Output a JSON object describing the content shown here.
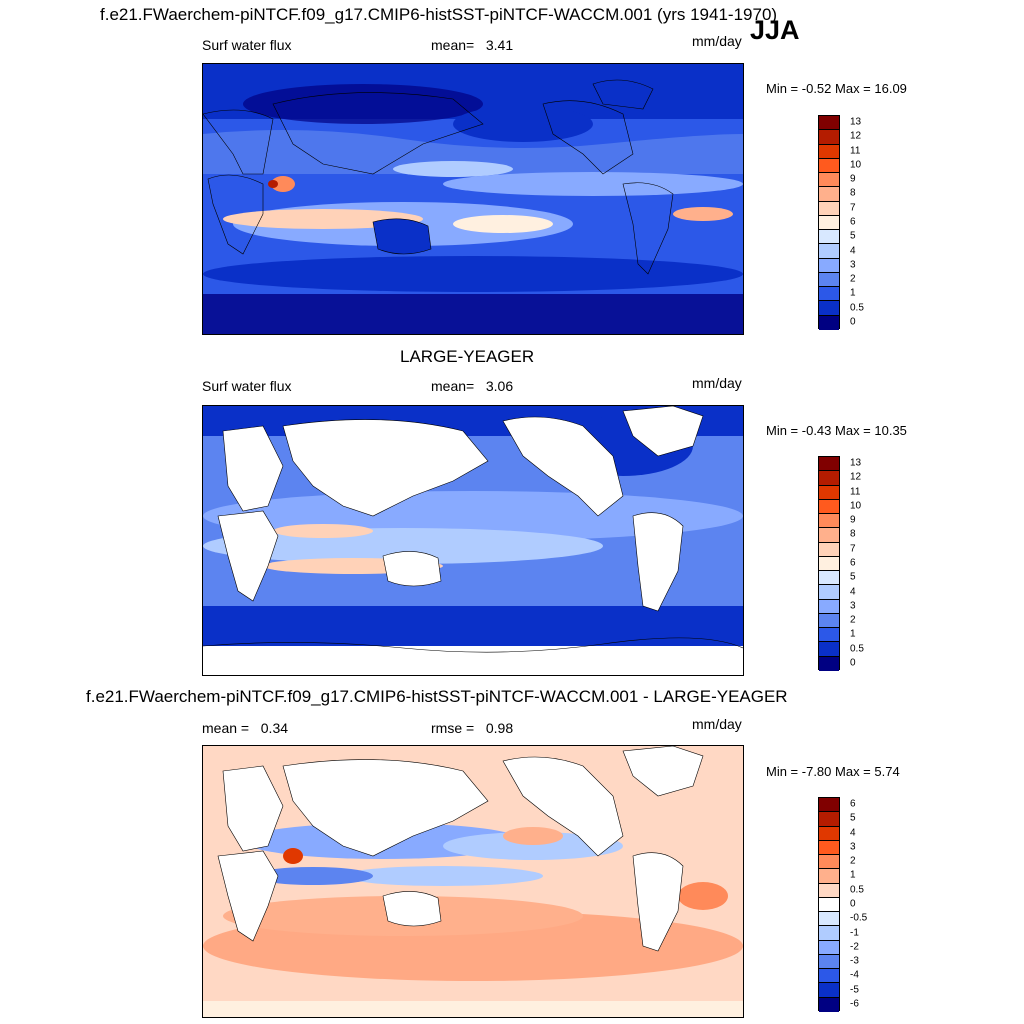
{
  "header": {
    "title": "f.e21.FWaerchem-piNTCF.f09_g17.CMIP6-histSST-piNTCF-WACCM.001 (yrs 1941-1970)",
    "season": "JJA"
  },
  "panel1": {
    "variable": "Surf water flux",
    "mean_label": "mean=",
    "mean_value": "3.41",
    "units": "mm/day",
    "min_max": "Min =  -0.52 Max =  16.09",
    "colorbar_ticks": [
      "13",
      "12",
      "11",
      "10",
      "9",
      "8",
      "7",
      "6",
      "5",
      "4",
      "3",
      "2",
      "1",
      "0.5",
      "0"
    ]
  },
  "panel2": {
    "title": "LARGE-YEAGER",
    "variable": "Surf water flux",
    "mean_label": "mean=",
    "mean_value": "3.06",
    "units": "mm/day",
    "min_max": "Min =  -0.43 Max =  10.35",
    "colorbar_ticks": [
      "13",
      "12",
      "11",
      "10",
      "9",
      "8",
      "7",
      "6",
      "5",
      "4",
      "3",
      "2",
      "1",
      "0.5",
      "0"
    ]
  },
  "panel3": {
    "title": "f.e21.FWaerchem-piNTCF.f09_g17.CMIP6-histSST-piNTCF-WACCM.001 - LARGE-YEAGER",
    "mean_label": "mean =",
    "mean_value": "0.34",
    "rmse_label": "rmse =",
    "rmse_value": "0.98",
    "units": "mm/day",
    "min_max": "Min =  -7.80 Max =  5.74",
    "colorbar_ticks": [
      "6",
      "5",
      "4",
      "3",
      "2",
      "1",
      "0.5",
      "0",
      "-0.5",
      "-1",
      "-2",
      "-3",
      "-4",
      "-5",
      "-6"
    ]
  },
  "colors": {
    "abs_scale": [
      "#800000",
      "#b41c00",
      "#e03800",
      "#ff5a1e",
      "#ff8a5a",
      "#ffb08c",
      "#ffd2b8",
      "#fff0e0",
      "#d8e8ff",
      "#b0ccff",
      "#88aaff",
      "#5c84f0",
      "#2c58e8",
      "#0a30c8",
      "#000082"
    ],
    "diff_scale": [
      "#800000",
      "#b41c00",
      "#e03800",
      "#ff5a1e",
      "#ff8a5a",
      "#ffb08c",
      "#ffd8c4",
      "#ffffff",
      "#d8e8ff",
      "#b0ccff",
      "#88aaff",
      "#5c84f0",
      "#2c58e8",
      "#0a30c8",
      "#000082"
    ]
  }
}
